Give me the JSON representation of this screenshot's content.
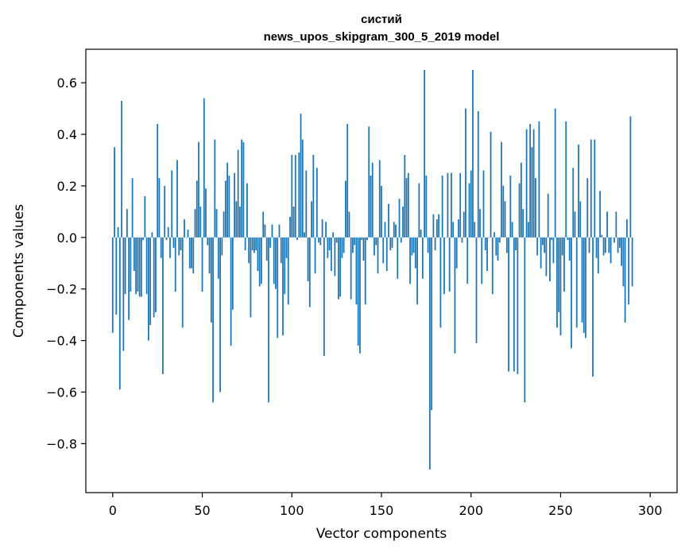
{
  "chart_data": {
    "type": "bar",
    "title": "систий",
    "subtitle": "news_upos_skipgram_300_5_2019 model",
    "xlabel": "Vector components",
    "ylabel": "Components values",
    "xlim": [
      -15,
      315
    ],
    "ylim": [
      -0.99,
      0.73
    ],
    "xticks": [
      0,
      50,
      100,
      150,
      200,
      250,
      300
    ],
    "yticks": [
      0.6,
      0.4,
      0.2,
      0.0,
      -0.2,
      -0.4,
      -0.6,
      -0.8
    ],
    "ytick_labels": [
      "0.6",
      "0.4",
      "0.2",
      "0.0",
      "−0.2",
      "−0.4",
      "−0.6",
      "−0.8"
    ],
    "grid": false,
    "bar_color": "#1f77b4",
    "values": [
      -0.37,
      0.35,
      -0.3,
      0.04,
      -0.59,
      0.53,
      -0.44,
      -0.22,
      0.11,
      -0.32,
      -0.21,
      0.23,
      -0.13,
      -0.22,
      -0.21,
      -0.23,
      -0.23,
      -0.01,
      0.16,
      -0.22,
      -0.4,
      -0.34,
      0.02,
      -0.31,
      -0.29,
      0.44,
      0.23,
      -0.08,
      -0.53,
      0.2,
      -0.01,
      0.04,
      -0.08,
      0.26,
      -0.04,
      -0.21,
      0.3,
      -0.07,
      -0.05,
      -0.35,
      0.07,
      0.0,
      0.03,
      -0.12,
      -0.12,
      -0.14,
      0.11,
      0.22,
      0.37,
      0.12,
      -0.21,
      0.54,
      0.19,
      -0.03,
      -0.14,
      -0.33,
      -0.64,
      0.38,
      0.11,
      -0.16,
      -0.6,
      -0.07,
      0.1,
      0.22,
      0.29,
      0.24,
      -0.42,
      -0.28,
      0.25,
      0.14,
      0.34,
      0.12,
      0.38,
      0.37,
      -0.05,
      0.21,
      -0.1,
      -0.31,
      -0.05,
      -0.06,
      -0.05,
      -0.13,
      -0.19,
      -0.18,
      0.1,
      0.05,
      -0.09,
      -0.64,
      -0.04,
      0.05,
      -0.18,
      -0.2,
      -0.39,
      0.05,
      -0.1,
      -0.38,
      -0.22,
      -0.08,
      -0.26,
      0.08,
      0.32,
      0.12,
      0.32,
      -0.01,
      0.33,
      0.48,
      0.38,
      0.02,
      0.26,
      -0.17,
      -0.27,
      0.14,
      0.32,
      -0.14,
      0.27,
      -0.02,
      -0.03,
      0.07,
      -0.46,
      0.06,
      -0.08,
      -0.05,
      -0.13,
      0.02,
      -0.15,
      -0.02,
      -0.24,
      -0.23,
      -0.08,
      -0.06,
      0.22,
      0.44,
      0.1,
      -0.24,
      -0.06,
      -0.03,
      -0.26,
      -0.42,
      -0.45,
      -0.01,
      -0.09,
      -0.26,
      -0.01,
      0.43,
      0.24,
      0.29,
      -0.07,
      -0.03,
      -0.14,
      0.3,
      0.2,
      -0.1,
      0.06,
      -0.13,
      0.13,
      -0.05,
      -0.04,
      0.06,
      0.05,
      -0.16,
      0.15,
      -0.02,
      0.12,
      0.32,
      0.23,
      0.25,
      -0.18,
      -0.07,
      -0.06,
      -0.12,
      -0.26,
      0.21,
      0.03,
      -0.16,
      0.65,
      0.24,
      -0.06,
      -0.9,
      -0.67,
      0.09,
      -0.05,
      0.07,
      0.09,
      -0.35,
      0.24,
      -0.22,
      0.0,
      0.25,
      -0.21,
      0.25,
      0.06,
      -0.45,
      -0.12,
      0.07,
      0.25,
      -0.02,
      0.1,
      0.5,
      -0.18,
      0.21,
      0.26,
      0.65,
      0.06,
      -0.41,
      0.49,
      0.11,
      -0.18,
      0.26,
      -0.05,
      -0.13,
      0.0,
      0.41,
      -0.22,
      0.02,
      -0.07,
      -0.09,
      -0.02,
      0.37,
      0.2,
      0.14,
      -0.06,
      -0.52,
      0.24,
      0.06,
      -0.52,
      -0.05,
      -0.53,
      0.21,
      0.29,
      0.11,
      -0.64,
      0.42,
      0.06,
      0.44,
      0.35,
      0.42,
      0.23,
      -0.07,
      0.45,
      -0.12,
      -0.03,
      -0.06,
      -0.15,
      0.17,
      -0.17,
      -0.01,
      -0.1,
      0.5,
      -0.35,
      -0.29,
      -0.38,
      -0.07,
      -0.21,
      0.45,
      -0.01,
      -0.09,
      -0.43,
      0.27,
      0.1,
      -0.35,
      0.36,
      0.14,
      -0.33,
      -0.37,
      -0.39,
      0.23,
      -0.06,
      0.38,
      -0.54,
      0.38,
      -0.08,
      -0.14,
      0.18,
      0.01,
      -0.07,
      -0.06,
      0.1,
      -0.06,
      -0.1,
      0.0,
      -0.02,
      0.1,
      -0.06,
      -0.04,
      -0.11,
      -0.19,
      -0.33,
      0.07,
      -0.26,
      0.47,
      -0.19
    ]
  }
}
